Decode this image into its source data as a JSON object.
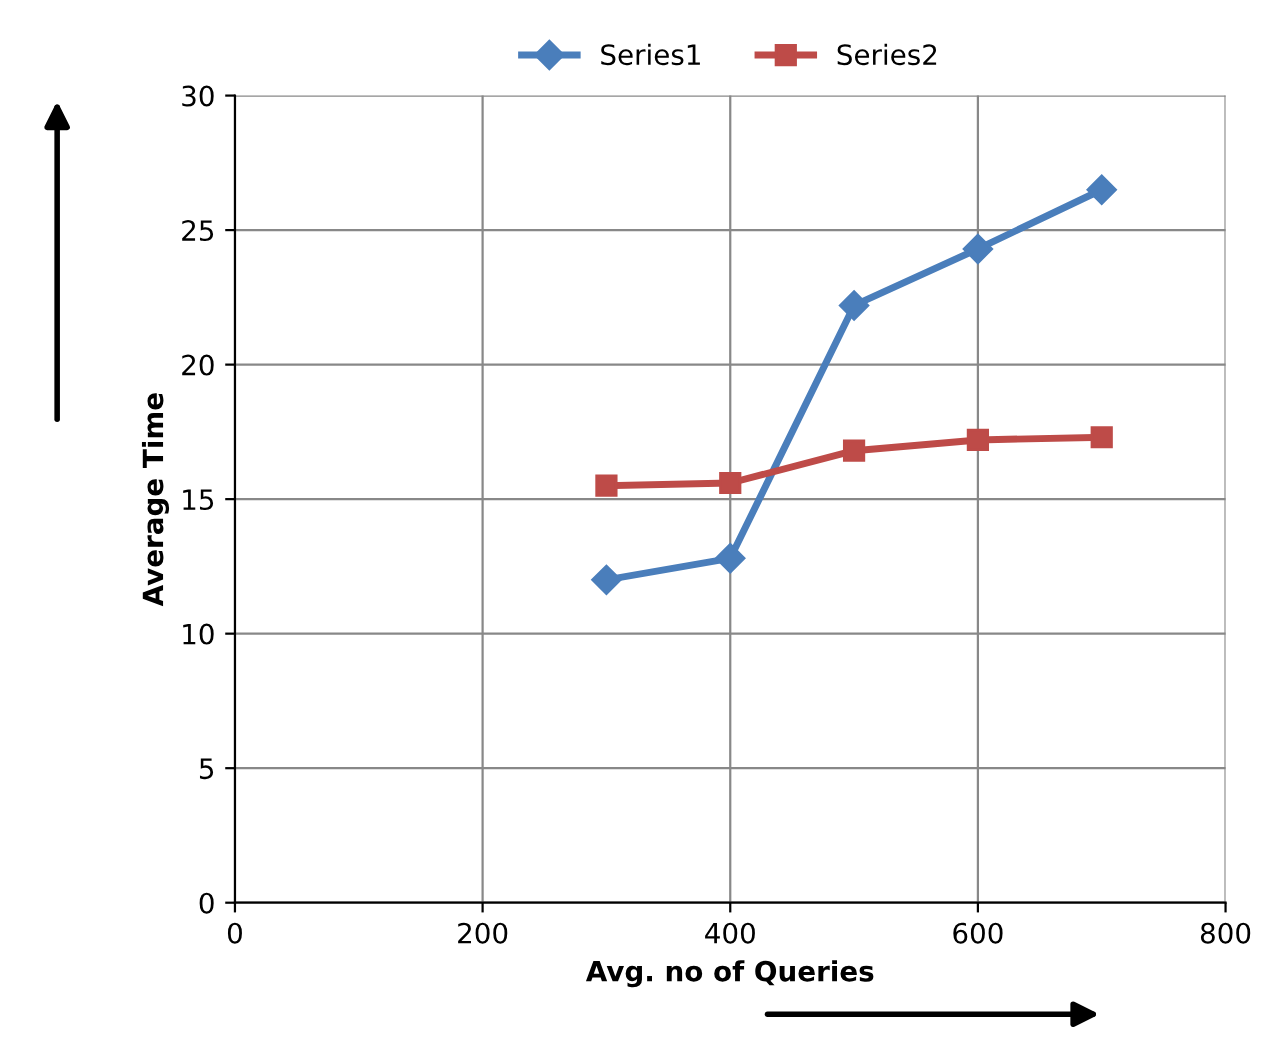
{
  "chart_data": {
    "type": "line",
    "xlabel": "Avg. no of Queries",
    "ylabel": "Average Time",
    "x": [
      300,
      400,
      500,
      600,
      700
    ],
    "series": [
      {
        "name": "Series1",
        "color": "#4a7ebb",
        "values": [
          12,
          12.8,
          22.2,
          24.3,
          26.5
        ],
        "marker": "diamond"
      },
      {
        "name": "Series2",
        "color": "#be4b48",
        "values": [
          15.5,
          15.6,
          16.8,
          17.2,
          17.3
        ],
        "marker": "square"
      }
    ],
    "xlim": [
      0,
      800
    ],
    "xticks": [
      0,
      200,
      400,
      600,
      800
    ],
    "ylim": [
      0,
      30
    ],
    "yticks": [
      0,
      5,
      10,
      15,
      20,
      25,
      30
    ],
    "grid": true,
    "legend": "top",
    "line_style": "solid"
  }
}
